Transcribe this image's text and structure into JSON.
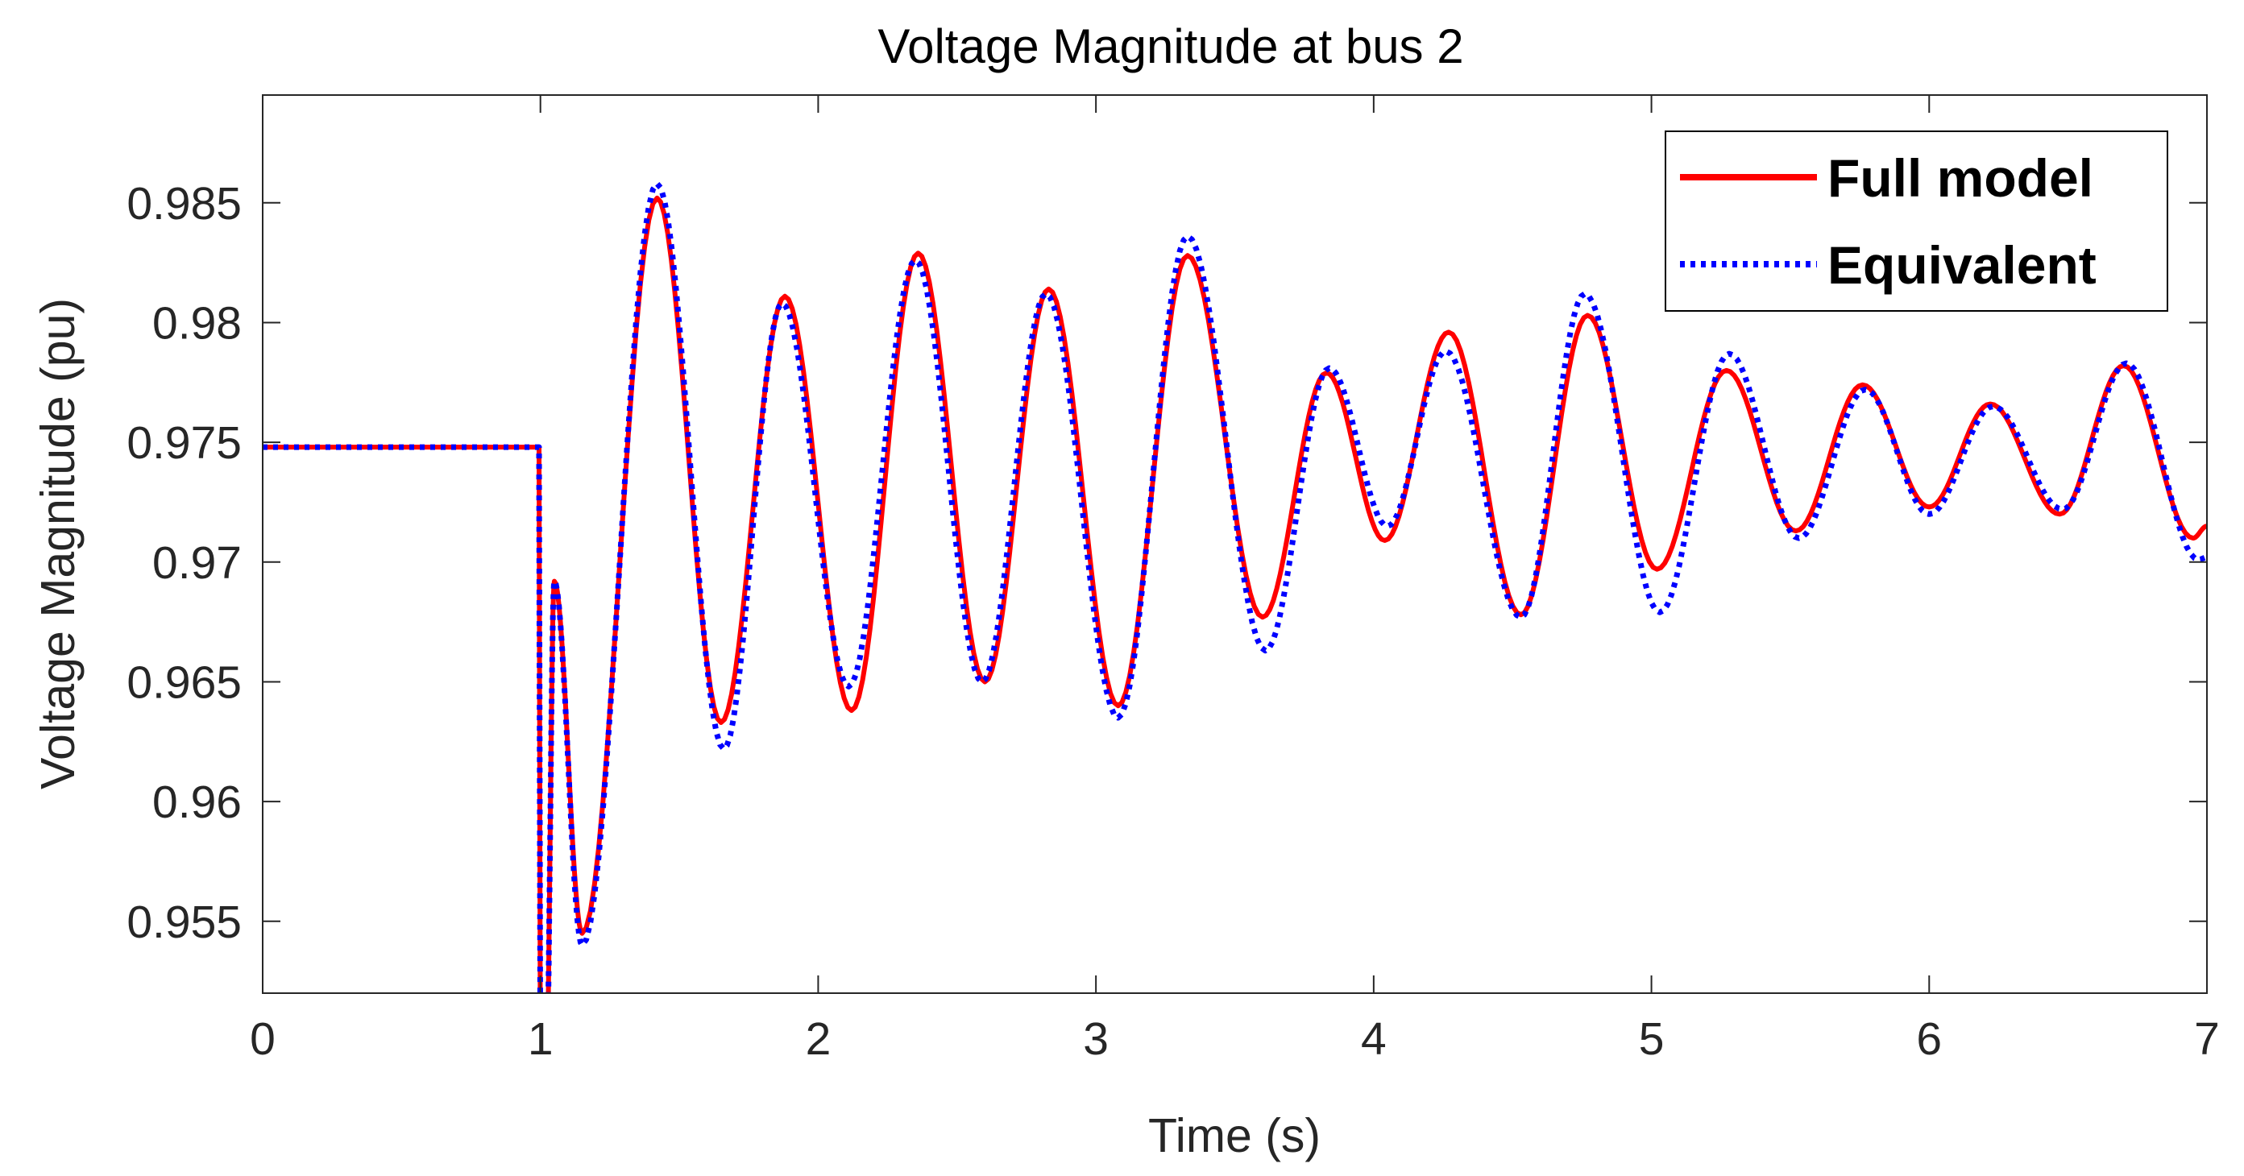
{
  "chart_data": {
    "type": "line",
    "title": "Voltage Magnitude at bus 2",
    "xlabel": "Time (s)",
    "ylabel": "Voltage Magnitude (pu)",
    "xlim": [
      0,
      7
    ],
    "ylim": [
      0.952,
      0.9895
    ],
    "x_ticks": [
      0,
      1,
      2,
      3,
      4,
      5,
      6,
      7
    ],
    "x_tick_labels": [
      "0",
      "1",
      "2",
      "3",
      "4",
      "5",
      "6",
      "7"
    ],
    "y_ticks": [
      0.955,
      0.96,
      0.965,
      0.97,
      0.975,
      0.98,
      0.985
    ],
    "y_tick_labels": [
      "0.955",
      "0.96",
      "0.965",
      "0.97",
      "0.975",
      "0.98",
      "0.985"
    ],
    "grid": false,
    "legend_position": "top-right",
    "series": [
      {
        "name": "Full model",
        "color": "#ff0000",
        "style": "solid",
        "x": [
          0,
          0.995,
          1.0,
          1.02,
          1.05,
          1.15,
          1.42,
          1.65,
          1.88,
          2.12,
          2.36,
          2.6,
          2.83,
          3.08,
          3.33,
          3.6,
          3.83,
          4.04,
          4.27,
          4.53,
          4.77,
          5.02,
          5.27,
          5.52,
          5.76,
          6.0,
          6.22,
          6.47,
          6.7,
          6.95,
          7.0
        ],
        "y": [
          0.9748,
          0.9748,
          0.948,
          0.948,
          0.9692,
          0.9545,
          0.9852,
          0.9633,
          0.9811,
          0.9638,
          0.9829,
          0.965,
          0.9814,
          0.964,
          0.9828,
          0.9677,
          0.9779,
          0.9709,
          0.9796,
          0.9678,
          0.9803,
          0.9697,
          0.978,
          0.9713,
          0.9774,
          0.9723,
          0.9766,
          0.972,
          0.9782,
          0.971,
          0.9715
        ]
      },
      {
        "name": "Equivalent",
        "color": "#0000ff",
        "style": "dotted",
        "x": [
          0,
          0.995,
          1.0,
          1.02,
          1.05,
          1.15,
          1.42,
          1.66,
          1.87,
          2.11,
          2.35,
          2.59,
          2.82,
          3.08,
          3.33,
          3.61,
          3.84,
          4.05,
          4.26,
          4.53,
          4.76,
          5.03,
          5.28,
          5.53,
          5.77,
          6.0,
          6.23,
          6.48,
          6.71,
          6.97,
          7.0
        ],
        "y": [
          0.9748,
          0.9748,
          0.948,
          0.948,
          0.9692,
          0.954,
          0.9858,
          0.9622,
          0.9808,
          0.9648,
          0.9826,
          0.965,
          0.9812,
          0.9635,
          0.9836,
          0.9663,
          0.9781,
          0.9715,
          0.9788,
          0.9677,
          0.9812,
          0.9679,
          0.9787,
          0.971,
          0.9772,
          0.972,
          0.9765,
          0.9722,
          0.9783,
          0.9701,
          0.9702
        ]
      }
    ]
  }
}
